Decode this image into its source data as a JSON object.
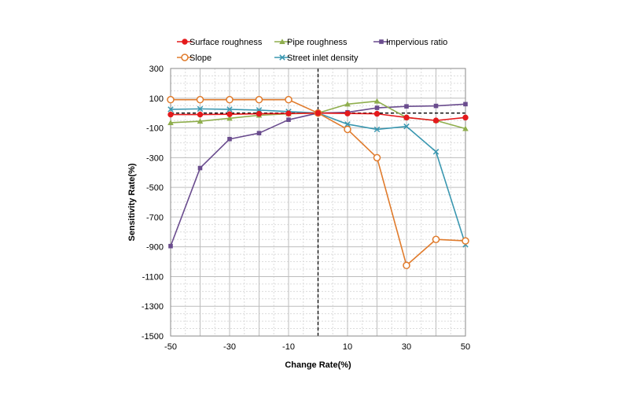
{
  "chart_data": {
    "type": "line",
    "title": "",
    "xlabel": "Change Rate(%)",
    "ylabel": "Sensitivity Rate(%)",
    "xlim": [
      -50,
      50
    ],
    "ylim": [
      -1500,
      300
    ],
    "x_ticks": [
      -50,
      -30,
      -10,
      10,
      30,
      50
    ],
    "y_ticks": [
      300,
      100,
      -100,
      -300,
      -500,
      -700,
      -900,
      -1100,
      -1300,
      -1500
    ],
    "grid": true,
    "legend_position": "top",
    "reference_lines": {
      "vertical_at_x": 0,
      "horizontal_at_y": 0,
      "style": "dashed"
    },
    "x": [
      -50,
      -40,
      -30,
      -20,
      -10,
      0,
      10,
      20,
      30,
      40,
      50
    ],
    "series": [
      {
        "name": "Surface roughness",
        "color": "#e41a1c",
        "marker": "circle",
        "values": [
          -10,
          -10,
          -8,
          -5,
          -3,
          0,
          -3,
          -5,
          -30,
          -50,
          -30
        ]
      },
      {
        "name": "Pipe roughness",
        "color": "#8fae4d",
        "marker": "triangle",
        "values": [
          -65,
          -55,
          -35,
          -15,
          -5,
          0,
          60,
          80,
          -30,
          -50,
          -105
        ]
      },
      {
        "name": "Impervious ratio",
        "color": "#6a4c8e",
        "marker": "square",
        "values": [
          -895,
          -370,
          -175,
          -135,
          -45,
          0,
          5,
          35,
          45,
          48,
          60
        ]
      },
      {
        "name": "Slope",
        "color": "#e07b2c",
        "marker": "circle-open",
        "values": [
          90,
          90,
          90,
          90,
          90,
          0,
          -110,
          -300,
          -1025,
          -850,
          -860
        ]
      },
      {
        "name": "Street inlet density",
        "color": "#3a97b0",
        "marker": "x",
        "values": [
          25,
          28,
          25,
          20,
          10,
          0,
          -75,
          -110,
          -90,
          -260,
          -885
        ]
      }
    ]
  }
}
